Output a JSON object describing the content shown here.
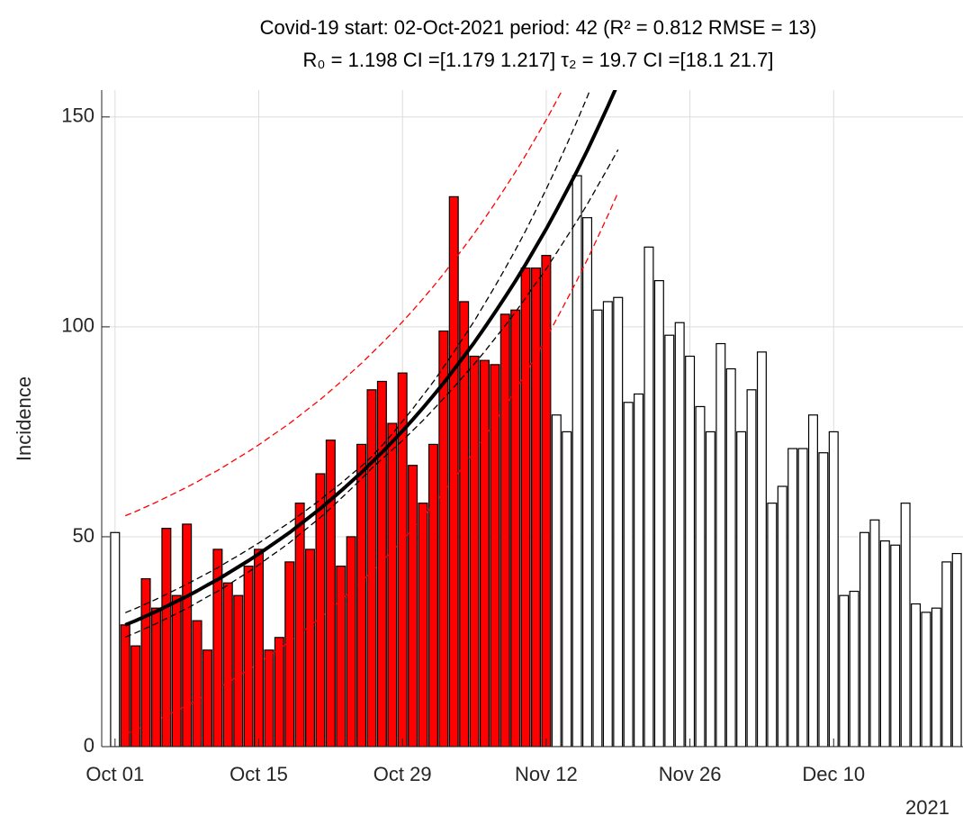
{
  "chart_data": {
    "type": "bar",
    "title_lines": [
      "Covid-19 start: 02-Oct-2021 period: 42 (R² = 0.812  RMSE = 13)",
      "R₀ = 1.198  CI =[1.179 1.217]  τ₂ = 19.7  CI =[18.1 21.7]"
    ],
    "y_label": "Incidence",
    "x_year_label": "2021",
    "categories": [
      "Oct 01",
      null,
      null,
      null,
      null,
      null,
      null,
      null,
      null,
      null,
      null,
      null,
      null,
      null,
      "Oct 15",
      null,
      null,
      null,
      null,
      null,
      null,
      null,
      null,
      null,
      null,
      null,
      null,
      null,
      "Oct 29",
      null,
      null,
      null,
      null,
      null,
      null,
      null,
      null,
      null,
      null,
      null,
      null,
      null,
      "Nov 12",
      null,
      null,
      null,
      null,
      null,
      null,
      null,
      null,
      null,
      null,
      null,
      null,
      null,
      "Nov 26",
      null,
      null,
      null,
      null,
      null,
      null,
      null,
      null,
      null,
      null,
      null,
      null,
      null,
      "Dec 10",
      null,
      null,
      null,
      null,
      null,
      null,
      null,
      null,
      null,
      null,
      null,
      null
    ],
    "ylim": [
      0,
      156.4
    ],
    "yticks": [
      0,
      50,
      100,
      150
    ],
    "grid": true,
    "series": [
      {
        "type": "bar",
        "color": "#ffffff",
        "values": [
          51,
          null,
          null,
          null,
          null,
          null,
          null,
          null,
          null,
          null,
          null,
          null,
          null,
          null,
          null,
          null,
          null,
          null,
          null,
          null,
          null,
          null,
          null,
          null,
          null,
          null,
          null,
          null,
          null,
          null,
          null,
          null,
          null,
          null,
          null,
          null,
          null,
          null,
          null,
          null,
          null,
          null,
          null,
          79,
          75,
          136,
          126,
          104,
          106,
          107,
          82,
          84,
          119,
          111,
          98,
          101,
          93,
          81,
          75,
          96,
          90,
          75,
          85,
          94,
          58,
          62,
          71,
          71,
          79,
          70,
          75,
          36,
          37,
          51,
          54,
          49,
          48,
          58,
          34,
          32,
          33,
          44,
          46
        ]
      },
      {
        "type": "bar",
        "color": "#ff0000",
        "values": [
          null,
          29,
          24,
          40,
          33,
          52,
          36,
          53,
          30,
          23,
          47,
          39,
          36,
          43,
          47,
          23,
          26,
          44,
          58,
          47,
          65,
          73,
          43,
          50,
          72,
          85,
          87,
          77,
          89,
          67,
          58,
          72,
          99,
          131,
          106,
          93,
          92,
          91,
          103,
          104,
          114,
          114,
          117,
          null,
          null,
          null,
          null,
          null,
          null,
          null,
          null,
          null,
          null,
          null,
          null,
          null,
          null,
          null,
          null,
          null,
          null,
          null,
          null,
          null,
          null,
          null,
          null,
          null,
          null,
          null,
          null,
          null,
          null,
          null,
          null,
          null,
          null,
          null,
          null,
          null,
          null,
          null,
          null
        ]
      },
      {
        "type": "line",
        "color": "#ff0000",
        "width": 1.3,
        "dashed": true,
        "values": [
          null,
          55.0,
          56.0,
          57.1,
          58.2,
          59.4,
          60.6,
          61.8,
          63.1,
          64.5,
          65.8,
          67.3,
          68.8,
          70.3,
          71.9,
          73.6,
          75.3,
          77.0,
          78.9,
          80.8,
          82.7,
          84.8,
          86.9,
          89.1,
          91.3,
          93.7,
          96.1,
          98.6,
          101.2,
          103.9,
          106.7,
          109.6,
          112.6,
          115.8,
          119.0,
          122.3,
          125.8,
          129.4,
          133.1,
          136.9,
          140.9,
          145.1,
          149.3,
          153.8,
          158.4,
          163.1,
          168.0,
          173.2,
          178.5,
          184.0,
          null,
          null,
          null,
          null,
          null,
          null,
          null,
          null,
          null,
          null,
          null,
          null,
          null,
          null,
          null,
          null,
          null,
          null,
          null,
          null,
          null,
          null,
          null,
          null,
          null,
          null,
          null,
          null,
          null,
          null,
          null,
          null,
          null
        ]
      },
      {
        "type": "line",
        "color": "#ff0000",
        "width": 1.3,
        "dashed": true,
        "values": [
          null,
          3.0,
          4.0,
          5.1,
          6.2,
          7.4,
          8.6,
          9.8,
          11.1,
          12.5,
          13.8,
          15.3,
          16.8,
          18.3,
          19.9,
          21.6,
          23.3,
          25.0,
          26.9,
          28.8,
          30.7,
          32.8,
          34.9,
          37.1,
          39.3,
          41.7,
          44.1,
          46.6,
          49.2,
          51.9,
          54.7,
          57.6,
          60.6,
          63.8,
          67.0,
          70.3,
          73.8,
          77.4,
          81.1,
          84.9,
          88.9,
          93.1,
          97.3,
          101.8,
          106.4,
          111.1,
          116.0,
          121.2,
          126.5,
          132.0,
          null,
          null,
          null,
          null,
          null,
          null,
          null,
          null,
          null,
          null,
          null,
          null,
          null,
          null,
          null,
          null,
          null,
          null,
          null,
          null,
          null,
          null,
          null,
          null,
          null,
          null,
          null,
          null,
          null,
          null,
          null,
          null,
          null
        ]
      },
      {
        "type": "line",
        "color": "#000000",
        "width": 1.3,
        "dashed": true,
        "values": [
          null,
          31.9,
          32.9,
          34.0,
          35.1,
          36.3,
          37.5,
          38.7,
          40.0,
          41.3,
          42.6,
          44.1,
          45.5,
          47.0,
          48.5,
          50.1,
          51.8,
          53.4,
          55.2,
          57.0,
          58.8,
          60.8,
          62.7,
          64.8,
          66.8,
          69.1,
          71.7,
          74.5,
          77.5,
          80.5,
          83.7,
          86.9,
          90.4,
          94.0,
          97.7,
          101.4,
          105.5,
          109.6,
          113.9,
          118.3,
          122.9,
          127.8,
          132.8,
          138.0,
          143.4,
          149.0,
          154.8,
          160.9,
          167.2,
          173.8,
          null,
          null,
          null,
          null,
          null,
          null,
          null,
          null,
          null,
          null,
          null,
          null,
          null,
          null,
          null,
          null,
          null,
          null,
          null,
          null,
          null,
          null,
          null,
          null,
          null,
          null,
          null,
          null,
          null,
          null,
          null,
          null,
          null
        ]
      },
      {
        "type": "line",
        "color": "#000000",
        "width": 1.3,
        "dashed": true,
        "values": [
          null,
          26.1,
          27.1,
          28.2,
          29.3,
          30.5,
          31.7,
          32.9,
          34.3,
          35.7,
          37.0,
          38.5,
          40.1,
          41.6,
          43.3,
          45.1,
          46.8,
          48.6,
          50.6,
          52.6,
          54.6,
          56.8,
          59.1,
          61.4,
          63.8,
          66.3,
          68.5,
          70.7,
          72.9,
          75.3,
          77.7,
          80.3,
          82.9,
          85.6,
          88.4,
          91.2,
          94.1,
          97.2,
          100.3,
          103.5,
          106.9,
          110.4,
          113.8,
          117.6,
          121.4,
          125.2,
          129.2,
          133.5,
          137.8,
          142.2,
          null,
          null,
          null,
          null,
          null,
          null,
          null,
          null,
          null,
          null,
          null,
          null,
          null,
          null,
          null,
          null,
          null,
          null,
          null,
          null,
          null,
          null,
          null,
          null,
          null,
          null,
          null,
          null,
          null,
          null,
          null,
          null,
          null
        ]
      },
      {
        "type": "line",
        "color": "#000000",
        "width": 4,
        "dashed": false,
        "values": [
          null,
          29.0,
          30.0,
          31.1,
          32.2,
          33.4,
          34.6,
          35.8,
          37.1,
          38.5,
          39.8,
          41.3,
          42.8,
          44.3,
          45.9,
          47.6,
          49.3,
          51.0,
          52.9,
          54.8,
          56.7,
          58.8,
          60.9,
          63.1,
          65.3,
          67.7,
          70.1,
          72.6,
          75.2,
          77.9,
          80.7,
          83.6,
          86.6,
          89.8,
          93.0,
          96.3,
          99.8,
          103.4,
          107.1,
          110.9,
          114.9,
          119.1,
          123.3,
          127.8,
          132.4,
          137.1,
          142.0,
          147.2,
          152.5,
          158.0,
          null,
          null,
          null,
          null,
          null,
          null,
          null,
          null,
          null,
          null,
          null,
          null,
          null,
          null,
          null,
          null,
          null,
          null,
          null,
          null,
          null,
          null,
          null,
          null,
          null,
          null,
          null,
          null,
          null,
          null,
          null,
          null,
          null
        ]
      }
    ]
  }
}
